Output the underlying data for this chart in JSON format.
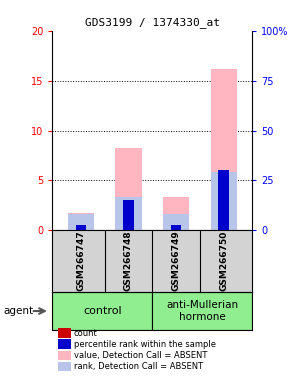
{
  "title": "GDS3199 / 1374330_at",
  "samples": [
    "GSM266747",
    "GSM266748",
    "GSM266749",
    "GSM266750"
  ],
  "ylim_left": [
    0,
    20
  ],
  "ylim_right": [
    0,
    100
  ],
  "yticks_left": [
    0,
    5,
    10,
    15,
    20
  ],
  "yticks_right": [
    0,
    25,
    50,
    75,
    100
  ],
  "ytick_labels_left": [
    "0",
    "5",
    "10",
    "15",
    "20"
  ],
  "ytick_labels_right": [
    "0",
    "25",
    "50",
    "75",
    "100%"
  ],
  "bar_positions": [
    0,
    1,
    2,
    3
  ],
  "absent_value_values": [
    1.7,
    8.3,
    3.3,
    16.2
  ],
  "absent_rank_values": [
    1.65,
    3.3,
    1.65,
    5.8
  ],
  "count_values": [
    0.5,
    0.5,
    0.5,
    0.5
  ],
  "rank_values": [
    0.5,
    3.0,
    0.5,
    6.0
  ],
  "count_color": "#cc0000",
  "rank_color": "#0000cc",
  "absent_value_color": "#ffb6c1",
  "absent_rank_color": "#b8c4e8",
  "legend_items": [
    {
      "color": "#cc0000",
      "label": "count"
    },
    {
      "color": "#0000cc",
      "label": "percentile rank within the sample"
    },
    {
      "color": "#ffb6c1",
      "label": "value, Detection Call = ABSENT"
    },
    {
      "color": "#b8c4e8",
      "label": "rank, Detection Call = ABSENT"
    }
  ],
  "agent_label": "agent",
  "control_label": "control",
  "treatment_label": "anti-Mullerian\nhormone",
  "sample_bg": "#d3d3d3",
  "group_bg": "#90EE90"
}
